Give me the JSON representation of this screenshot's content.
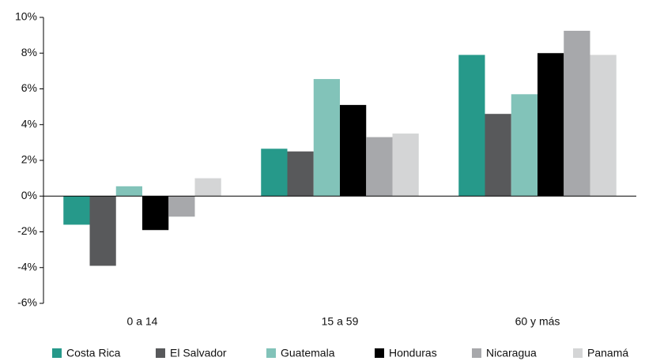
{
  "chart_data": {
    "type": "bar",
    "categories": [
      "0 a 14",
      "15 a 59",
      "60 y más"
    ],
    "series": [
      {
        "name": "Costa Rica",
        "color": "#26998a",
        "values": [
          -1.6,
          2.65,
          7.9
        ]
      },
      {
        "name": "El Salvador",
        "color": "#58595b",
        "values": [
          -3.9,
          2.5,
          4.6
        ]
      },
      {
        "name": "Guatemala",
        "color": "#82c3b9",
        "values": [
          0.55,
          6.55,
          5.7
        ]
      },
      {
        "name": "Honduras",
        "color": "#000000",
        "values": [
          -1.9,
          5.1,
          8.0
        ]
      },
      {
        "name": "Nicaragua",
        "color": "#a7a8ab",
        "values": [
          -1.15,
          3.3,
          9.25
        ]
      },
      {
        "name": "Panamá",
        "color": "#d4d5d6",
        "values": [
          1.0,
          3.5,
          7.9
        ]
      }
    ],
    "ylim": [
      -6,
      10
    ],
    "yticks": [
      {
        "value": -6,
        "label": "-6%"
      },
      {
        "value": -4,
        "label": "-4%"
      },
      {
        "value": -2,
        "label": "-2%"
      },
      {
        "value": 0,
        "label": "0%"
      },
      {
        "value": 2,
        "label": "2%"
      },
      {
        "value": 4,
        "label": "4%"
      },
      {
        "value": 6,
        "label": "6%"
      },
      {
        "value": 8,
        "label": "8%"
      },
      {
        "value": 10,
        "label": "10%"
      }
    ],
    "grid": false,
    "legend": "bottom"
  }
}
